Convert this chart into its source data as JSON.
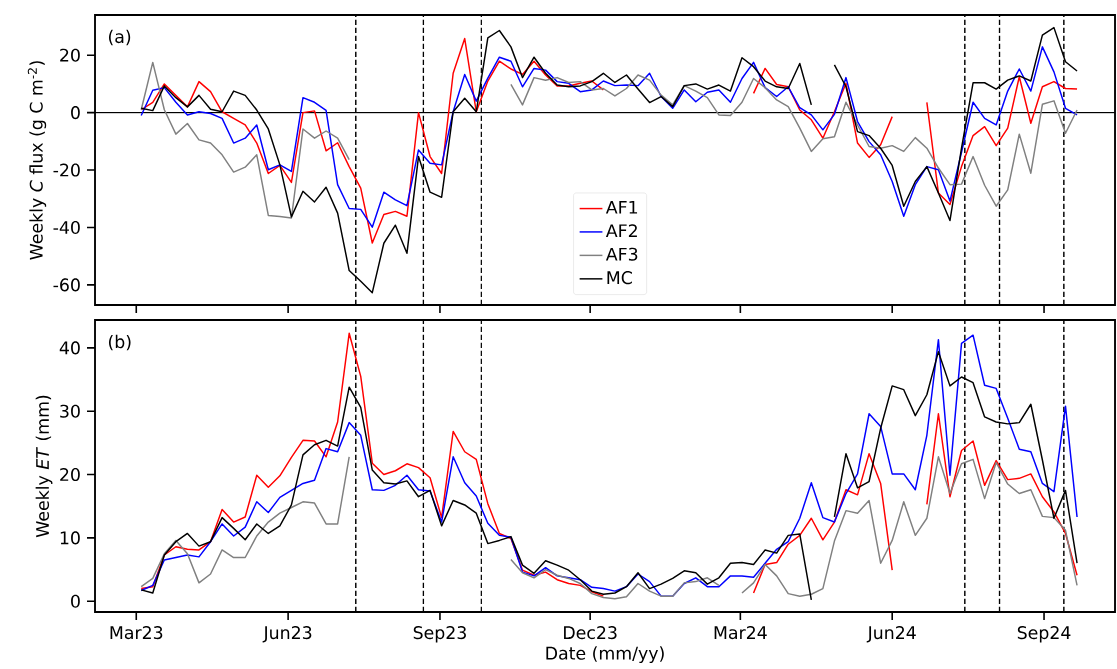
{
  "chart_data": [
    {
      "type": "line",
      "ylabel": "Weekly *C* flux (g C m$^{-2}$)",
      "annotations": [
        "(a)"
      ],
      "x": [
        "2023-03-04",
        "2023-03-11",
        "2023-03-18",
        "2023-03-25",
        "2023-04-01",
        "2023-04-08",
        "2023-04-15",
        "2023-04-22",
        "2023-04-29",
        "2023-05-06",
        "2023-05-13",
        "2023-05-20",
        "2023-05-27",
        "2023-06-03",
        "2023-06-10",
        "2023-06-17",
        "2023-06-24",
        "2023-07-01",
        "2023-07-08",
        "2023-07-15",
        "2023-07-22",
        "2023-07-29",
        "2023-08-05",
        "2023-08-12",
        "2023-08-19",
        "2023-08-26",
        "2023-09-02",
        "2023-09-09",
        "2023-09-16",
        "2023-09-23",
        "2023-09-30",
        "2023-10-07",
        "2023-10-14",
        "2023-10-21",
        "2023-10-28",
        "2023-11-04",
        "2023-11-11",
        "2023-11-18",
        "2023-11-25",
        "2023-12-02",
        "2023-12-09",
        "2023-12-16",
        "2023-12-23",
        "2023-12-30",
        "2024-01-06",
        "2024-01-13",
        "2024-01-20",
        "2024-01-27",
        "2024-02-03",
        "2024-02-10",
        "2024-02-17",
        "2024-02-24",
        "2024-03-02",
        "2024-03-09",
        "2024-03-16",
        "2024-03-23",
        "2024-03-30",
        "2024-04-06",
        "2024-04-13",
        "2024-04-20",
        "2024-04-27",
        "2024-05-04",
        "2024-05-11",
        "2024-05-18",
        "2024-05-25",
        "2024-06-01",
        "2024-06-08",
        "2024-06-15",
        "2024-06-22",
        "2024-06-29",
        "2024-07-06",
        "2024-07-13",
        "2024-07-20",
        "2024-07-27",
        "2024-08-03",
        "2024-08-10",
        "2024-08-17",
        "2024-08-24",
        "2024-08-31",
        "2024-09-07",
        "2024-09-14",
        "2024-09-21"
      ],
      "series": [
        {
          "name": "AF1",
          "color": "#ff0000",
          "values": [
            1,
            3.6,
            10,
            6,
            2,
            10.8,
            7.3,
            0.3,
            -2,
            -4.3,
            -10.6,
            -21.2,
            -18.4,
            -24.3,
            0,
            0.6,
            -13.3,
            -10.5,
            -18.8,
            -26.3,
            -45.4,
            -35.5,
            -34.4,
            -36.1,
            0,
            -15.3,
            -21.2,
            13.7,
            25.8,
            0.3,
            11,
            17.9,
            15.2,
            13.3,
            17.9,
            13.1,
            9.3,
            9.3,
            10.2,
            11,
            7.9,
            null,
            null,
            null,
            null,
            null,
            null,
            null,
            null,
            null,
            null,
            null,
            null,
            6.7,
            15.4,
            9.8,
            9,
            0.9,
            -2.5,
            -8.9,
            0.3,
            10.2,
            -10.6,
            -15.6,
            -11.2,
            -1.4,
            null,
            null,
            3.6,
            -28,
            -32,
            -18.8,
            -8,
            -4.9,
            -11.5,
            -5.4,
            12.5,
            -3.7,
            9,
            10.8,
            8.4,
            8.2
          ]
        },
        {
          "name": "AF2",
          "color": "#0000ff",
          "values": [
            -1,
            7.8,
            8.7,
            3.6,
            -0.8,
            0.3,
            -0.3,
            -2,
            -10.6,
            -8.9,
            -4.3,
            -19.9,
            -18.2,
            -20.5,
            5.2,
            3.6,
            0.8,
            -25.1,
            -33.4,
            -33.7,
            -39.9,
            -27.7,
            -30.4,
            -32.4,
            -13,
            -17.6,
            -18.2,
            0.3,
            13.3,
            4,
            12,
            19.3,
            17.9,
            9,
            15.4,
            14.8,
            10.8,
            10.2,
            7.3,
            7.9,
            11,
            9.4,
            9.6,
            9.4,
            13.7,
            5.6,
            1.5,
            7.9,
            3.8,
            7.1,
            7.9,
            3.6,
            11.9,
            17.5,
            8.7,
            5.6,
            9,
            1.7,
            -0.8,
            -6,
            -0.6,
            12.2,
            -3.1,
            -10.1,
            -14.7,
            -24,
            -36.1,
            -25.1,
            -18.8,
            -19.9,
            -30.8,
            -13.8,
            3.6,
            -2,
            -4.3,
            7.5,
            15.2,
            7.5,
            22.9,
            14.2,
            1.5,
            -0.8
          ]
        },
        {
          "name": "AF3",
          "color": "#808080",
          "values": [
            1,
            17.5,
            1,
            -7.5,
            -3.8,
            -9.5,
            -10.6,
            -14.7,
            -20.7,
            -19,
            -14.7,
            -35.8,
            -36.2,
            -36.7,
            -5.7,
            -8.9,
            -6.4,
            -8.9,
            -16.4,
            null,
            null,
            null,
            null,
            null,
            null,
            null,
            null,
            null,
            null,
            null,
            null,
            null,
            9.8,
            2.7,
            12.2,
            11.3,
            12.2,
            10.5,
            10.8,
            7.9,
            8.4,
            5.8,
            8.4,
            13.1,
            11.3,
            6.1,
            2.7,
            9.4,
            7.5,
            5.2,
            -0.8,
            -1,
            3.6,
            11.9,
            8.7,
            4.4,
            2.1,
            -5.4,
            -13.5,
            -9.1,
            -8.4,
            3.6,
            -4.3,
            -11.8,
            -12.4,
            -11.5,
            -13.5,
            -8.7,
            -12.4,
            -19.3,
            -25.1,
            -24.9,
            -15.3,
            -25.3,
            -32.6,
            -26.9,
            -7.5,
            -21.1,
            2.9,
            4.1,
            -7.2,
            0.9
          ]
        },
        {
          "name": "MC",
          "color": "#000000",
          "values": [
            1.5,
            0.7,
            9.3,
            5.2,
            2,
            6,
            1.2,
            0.3,
            7.5,
            6,
            0.9,
            -5.7,
            -18.2,
            -36.3,
            -27.4,
            -31.1,
            -26,
            -35,
            -55,
            -58.7,
            -62.7,
            -45.5,
            -39.2,
            -49,
            -15.3,
            -27.7,
            -29.5,
            0.3,
            5,
            0.3,
            26,
            28.6,
            22.9,
            12.2,
            19.3,
            13.7,
            9.6,
            9,
            9.3,
            10.8,
            13.7,
            10.5,
            13.1,
            8.2,
            3.5,
            5.6,
            2.1,
            9.4,
            10,
            8.2,
            9.6,
            7.5,
            19.1,
            16,
            11,
            9,
            8.4,
            17.1,
            2.7,
            null,
            16.6,
            9,
            -6.6,
            -8,
            -12.4,
            -18.4,
            -32.6,
            -24,
            -18.8,
            -28,
            -37.6,
            -12.4,
            10.4,
            10.4,
            8.2,
            11.3,
            12.8,
            11,
            27,
            29.6,
            17.7,
            14.5
          ]
        }
      ],
      "xlim": [
        "2023-02-04",
        "2024-10-14"
      ],
      "xticks": [
        {
          "value": "2023-03-01",
          "label": null
        },
        {
          "value": "2023-06-01",
          "label": null
        },
        {
          "value": "2023-09-01",
          "label": null
        },
        {
          "value": "2023-12-01",
          "label": null
        },
        {
          "value": "2024-03-01",
          "label": null
        },
        {
          "value": "2024-06-01",
          "label": null
        },
        {
          "value": "2024-09-01",
          "label": null
        }
      ],
      "ylim": [
        -67,
        34
      ],
      "yticks": [
        -60,
        -40,
        -20,
        0,
        20
      ],
      "tick_labels": "y",
      "legend": "bottom",
      "line_style": "solid",
      "ref_lines": [
        {
          "axis": "y",
          "value": 0,
          "color": "#000000",
          "line_style": "solid"
        },
        {
          "axis": "x",
          "value": "2023-07-12",
          "color": "#000000",
          "line_style": "dashed"
        },
        {
          "axis": "x",
          "value": "2023-08-22",
          "color": "#000000",
          "line_style": "dashed"
        },
        {
          "axis": "x",
          "value": "2023-09-26",
          "color": "#000000",
          "line_style": "dashed"
        },
        {
          "axis": "x",
          "value": "2024-07-15",
          "color": "#000000",
          "line_style": "dashed"
        },
        {
          "axis": "x",
          "value": "2024-08-05",
          "color": "#000000",
          "line_style": "dashed"
        },
        {
          "axis": "x",
          "value": "2024-09-13",
          "color": "#000000",
          "line_style": "dashed"
        }
      ]
    },
    {
      "type": "line",
      "xlabel": "Date (mm/yy)",
      "ylabel": "Weekly *ET* (mm)",
      "annotations": [
        "(b)"
      ],
      "x": [
        "2023-03-04",
        "2023-03-11",
        "2023-03-18",
        "2023-03-25",
        "2023-04-01",
        "2023-04-08",
        "2023-04-15",
        "2023-04-22",
        "2023-04-29",
        "2023-05-06",
        "2023-05-13",
        "2023-05-20",
        "2023-05-27",
        "2023-06-03",
        "2023-06-10",
        "2023-06-17",
        "2023-06-24",
        "2023-07-01",
        "2023-07-08",
        "2023-07-15",
        "2023-07-22",
        "2023-07-29",
        "2023-08-05",
        "2023-08-12",
        "2023-08-19",
        "2023-08-26",
        "2023-09-02",
        "2023-09-09",
        "2023-09-16",
        "2023-09-23",
        "2023-09-30",
        "2023-10-07",
        "2023-10-14",
        "2023-10-21",
        "2023-10-28",
        "2023-11-04",
        "2023-11-11",
        "2023-11-18",
        "2023-11-25",
        "2023-12-02",
        "2023-12-09",
        "2023-12-16",
        "2023-12-23",
        "2023-12-30",
        "2024-01-06",
        "2024-01-13",
        "2024-01-20",
        "2024-01-27",
        "2024-02-03",
        "2024-02-10",
        "2024-02-17",
        "2024-02-24",
        "2024-03-02",
        "2024-03-09",
        "2024-03-16",
        "2024-03-23",
        "2024-03-30",
        "2024-04-06",
        "2024-04-13",
        "2024-04-20",
        "2024-04-27",
        "2024-05-04",
        "2024-05-11",
        "2024-05-18",
        "2024-05-25",
        "2024-06-01",
        "2024-06-08",
        "2024-06-15",
        "2024-06-22",
        "2024-06-29",
        "2024-07-06",
        "2024-07-13",
        "2024-07-20",
        "2024-07-27",
        "2024-08-03",
        "2024-08-10",
        "2024-08-17",
        "2024-08-24",
        "2024-08-31",
        "2024-09-07",
        "2024-09-14",
        "2024-09-21"
      ],
      "series": [
        {
          "color": "#ff0000",
          "values": [
            2,
            2.3,
            7.3,
            8.6,
            8.2,
            8.1,
            9.4,
            14.5,
            12.5,
            13.3,
            19.9,
            18,
            19.8,
            22.7,
            25.4,
            25.3,
            22.8,
            28.3,
            42.3,
            35.5,
            21.8,
            20,
            20.6,
            21.7,
            21.1,
            19.5,
            13.2,
            26.8,
            23.6,
            22.4,
            15.4,
            10.7,
            9.9,
            4.9,
            4.1,
            4.6,
            3.4,
            2.8,
            2.5,
            1.5,
            0.8,
            null,
            null,
            null,
            null,
            null,
            null,
            null,
            null,
            null,
            null,
            null,
            null,
            1.3,
            5.8,
            6.1,
            9,
            10.4,
            13.1,
            9.7,
            12.5,
            17.6,
            16.8,
            23.3,
            18.6,
            4.9,
            null,
            null,
            15.3,
            29.6,
            16.5,
            23.8,
            25.3,
            18.3,
            22.2,
            19.2,
            19.4,
            20.1,
            16.5,
            14.1,
            10.7,
            4.1
          ]
        },
        {
          "color": "#0000ff",
          "values": [
            1.7,
            2.5,
            6.5,
            6.9,
            7.3,
            7,
            9.4,
            12.2,
            10.3,
            11.7,
            15.7,
            14,
            16.4,
            17.5,
            18.6,
            19.1,
            24.1,
            23.6,
            28.2,
            26.2,
            17.6,
            17.5,
            18.3,
            19.9,
            17.6,
            17.4,
            12.5,
            22.8,
            18.7,
            16.6,
            12.3,
            10.4,
            10.1,
            4.6,
            4,
            5.3,
            4,
            3.7,
            3.4,
            2.2,
            2,
            1.6,
            2.3,
            4.3,
            3.1,
            0.8,
            0.8,
            2.8,
            3.7,
            2.3,
            2.3,
            4,
            4,
            3.8,
            6,
            8.2,
            9.4,
            13.1,
            18.7,
            13.2,
            12.5,
            17,
            20.1,
            29.6,
            27.6,
            20.1,
            20.1,
            17.6,
            26.2,
            41.3,
            19.9,
            40.7,
            42,
            34.1,
            33.6,
            28.9,
            24,
            23.6,
            18.6,
            17.3,
            30.8,
            13.3
          ]
        },
        {
          "color": "#808080",
          "values": [
            2.3,
            3.6,
            7.5,
            9.6,
            7.5,
            2.9,
            4.3,
            8.1,
            6.9,
            6.9,
            10.3,
            12.5,
            13.9,
            14.8,
            15.7,
            15.5,
            12.2,
            12.2,
            22.8,
            null,
            null,
            null,
            null,
            null,
            null,
            null,
            null,
            null,
            null,
            null,
            null,
            null,
            6.6,
            4.5,
            3.7,
            5,
            4.1,
            3.6,
            2.8,
            1.2,
            0.6,
            0.4,
            0.7,
            2.8,
            1.6,
            0.8,
            0.8,
            2.9,
            3.1,
            3.7,
            2.5,
            null,
            1.3,
            2.9,
            5.8,
            4,
            1.2,
            0.8,
            1.1,
            2,
            9.5,
            14.3,
            13.9,
            15.9,
            6,
            9.6,
            15.7,
            10.4,
            13.1,
            22.8,
            17,
            21.7,
            22.4,
            16.2,
            21.9,
            18.5,
            17,
            17.6,
            13.4,
            13.2,
            11.2,
            2.5
          ]
        },
        {
          "color": "#000000",
          "values": [
            1.8,
            1.3,
            7.3,
            9.4,
            10.7,
            8.7,
            9.4,
            13.2,
            11.5,
            9.7,
            12.2,
            10.7,
            11.9,
            15.2,
            23.1,
            24.7,
            25.4,
            24.5,
            33.8,
            30.6,
            20.7,
            18.7,
            18.5,
            19,
            16.5,
            17.5,
            11.9,
            15.9,
            15.2,
            13.9,
            9.1,
            9.6,
            10.2,
            5.7,
            4.4,
            6.4,
            5.7,
            4.9,
            3.4,
            1.6,
            1.1,
            1.3,
            2.3,
            4.5,
            2,
            2.7,
            3.6,
            4.8,
            4.5,
            2.7,
            3.7,
            6,
            6.1,
            5.8,
            8.1,
            7.6,
            10.4,
            10.6,
            0.2,
            null,
            13.3,
            23.3,
            17.9,
            18.9,
            27.3,
            34,
            33.4,
            29.3,
            32.6,
            39.4,
            34,
            35.4,
            34.5,
            29.1,
            28.3,
            28,
            28.2,
            31.1,
            22.3,
            13.1,
            17.5,
            6
          ]
        }
      ],
      "xlim": [
        "2023-02-04",
        "2024-10-14"
      ],
      "xticks": [
        {
          "value": "2023-03-01",
          "label": "Mar23"
        },
        {
          "value": "2023-06-01",
          "label": "Jun23"
        },
        {
          "value": "2023-09-01",
          "label": "Sep23"
        },
        {
          "value": "2023-12-01",
          "label": "Dec23"
        },
        {
          "value": "2024-03-01",
          "label": "Mar24"
        },
        {
          "value": "2024-06-01",
          "label": "Jun24"
        },
        {
          "value": "2024-09-01",
          "label": "Sep24"
        }
      ],
      "ylim": [
        -1.7,
        44.4
      ],
      "yticks": [
        0,
        10,
        20,
        30,
        40
      ],
      "line_style": "solid",
      "ref_lines": [
        {
          "axis": "x",
          "value": "2023-07-12",
          "color": "#000000",
          "line_style": "dashed"
        },
        {
          "axis": "x",
          "value": "2023-08-22",
          "color": "#000000",
          "line_style": "dashed"
        },
        {
          "axis": "x",
          "value": "2023-09-26",
          "color": "#000000",
          "line_style": "dashed"
        },
        {
          "axis": "x",
          "value": "2024-07-15",
          "color": "#000000",
          "line_style": "dashed"
        },
        {
          "axis": "x",
          "value": "2024-08-05",
          "color": "#000000",
          "line_style": "dashed"
        },
        {
          "axis": "x",
          "value": "2024-09-13",
          "color": "#000000",
          "line_style": "dashed"
        }
      ]
    }
  ]
}
